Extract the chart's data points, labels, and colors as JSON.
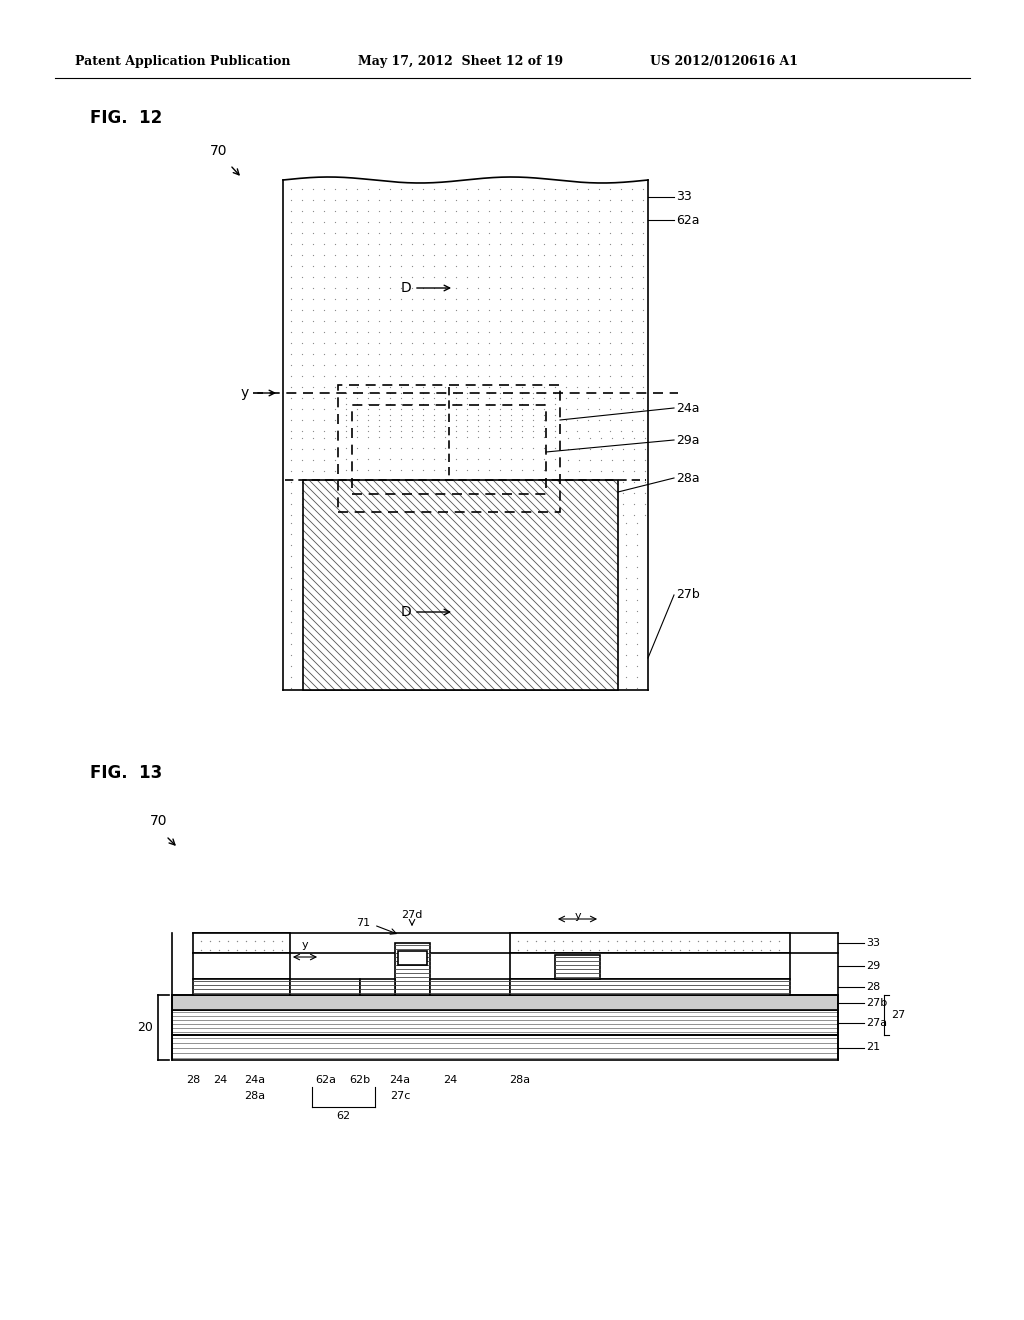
{
  "bg_color": "#ffffff",
  "header_left": "Patent Application Publication",
  "header_mid": "May 17, 2012  Sheet 12 of 19",
  "header_right": "US 2012/0120616 A1",
  "line_color": "#000000",
  "dot_color": "#888888",
  "hatch_color": "#444444",
  "fig12_label": "FIG.  12",
  "fig13_label": "FIG.  13"
}
